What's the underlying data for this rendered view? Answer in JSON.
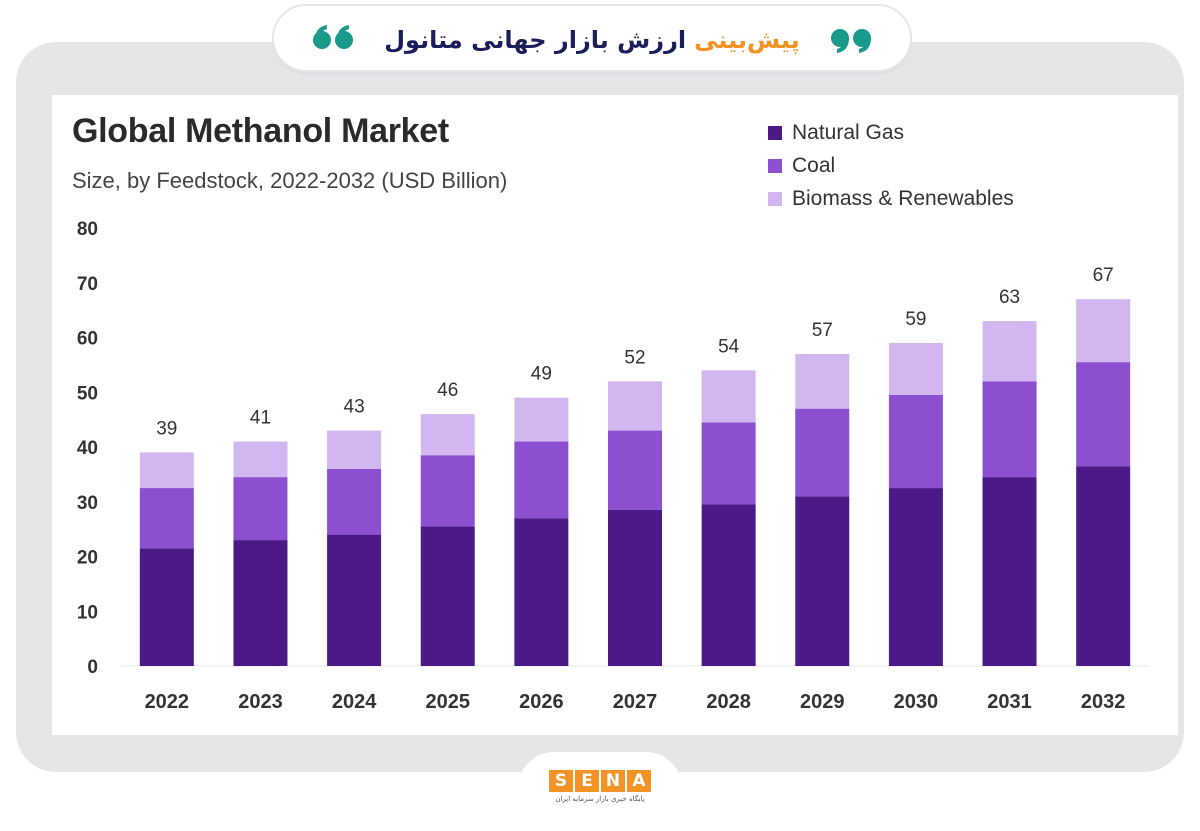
{
  "header": {
    "title_highlight": "پیش‌بینی",
    "title_rest": "ارزش بازار جهانی متانول",
    "quote_color": "#1a9a8a"
  },
  "brand": {
    "letters": [
      "S",
      "E",
      "N",
      "A"
    ],
    "tagline": "پایگاه خبری بازار سرمایه ایران",
    "color": "#f39325"
  },
  "chart_data": {
    "type": "bar",
    "stacked": true,
    "title": "Global Methanol Market",
    "subtitle": "Size, by Feedstock, 2022-2032 (USD Billion)",
    "categories": [
      "2022",
      "2023",
      "2024",
      "2025",
      "2026",
      "2027",
      "2028",
      "2029",
      "2030",
      "2031",
      "2032"
    ],
    "series": [
      {
        "name": "Natural Gas",
        "color": "#4b1a87",
        "values": [
          21.5,
          23,
          24,
          25.5,
          27,
          28.5,
          29.5,
          31,
          32.5,
          34.5,
          36.5
        ]
      },
      {
        "name": "Coal",
        "color": "#8b4fd0",
        "values": [
          11,
          11.5,
          12,
          13,
          14,
          14.5,
          15,
          16,
          17,
          17.5,
          19
        ]
      },
      {
        "name": "Biomass & Renewables",
        "color": "#d2b6f0",
        "values": [
          6.5,
          6.5,
          7,
          7.5,
          8,
          9,
          9.5,
          10,
          9.5,
          11,
          11.5
        ]
      }
    ],
    "totals": [
      39,
      41,
      43,
      46,
      49,
      52,
      54,
      57,
      59,
      63,
      67
    ],
    "yticks": [
      0,
      10,
      20,
      30,
      40,
      50,
      60,
      70,
      80
    ],
    "ylim": [
      0,
      80
    ],
    "xlabel": "",
    "ylabel": "",
    "grid": false,
    "legend_position": "top-right"
  }
}
